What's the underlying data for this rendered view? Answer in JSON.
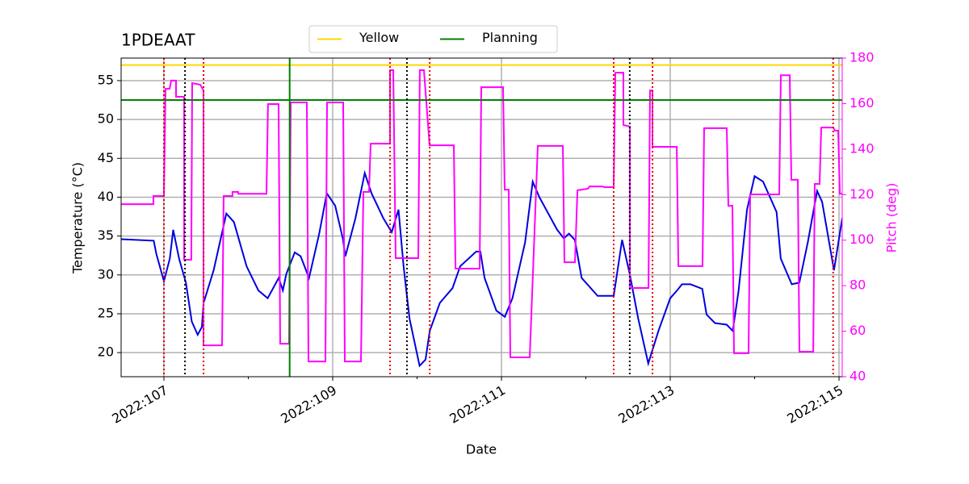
{
  "chart_data": {
    "type": "line",
    "title": "1PDEAAT",
    "xlabel": "Date",
    "ylabel": "Temperature (°C)",
    "y2label": "Pitch (deg)",
    "y2color": "magenta",
    "legend": "upper center",
    "grid": true,
    "xlim": [
      106.493,
      115.038
    ],
    "xticks": [
      {
        "value": 107,
        "label": "2022:107"
      },
      {
        "value": 109,
        "label": "2022:109"
      },
      {
        "value": 111,
        "label": "2022:111"
      },
      {
        "value": 113,
        "label": "2022:113"
      },
      {
        "value": 115,
        "label": "2022:115"
      }
    ],
    "xminor_ticks": [
      108,
      110,
      112,
      114
    ],
    "ylim": [
      16.9,
      57.9
    ],
    "yticks": [
      20,
      25,
      30,
      35,
      40,
      45,
      50,
      55
    ],
    "y2lim": [
      40,
      180
    ],
    "y2ticks": [
      40,
      60,
      80,
      100,
      120,
      140,
      160,
      180
    ],
    "hlines": [
      {
        "name": "Yellow",
        "color": "gold",
        "value": 57
      },
      {
        "name": "Planning",
        "color": "green",
        "value": 52.5
      }
    ],
    "vlines": [
      {
        "color": "#e00000",
        "style": "dotted",
        "x": [
          107.0,
          107.47,
          109.68,
          110.15,
          112.33,
          112.79,
          114.93
        ]
      },
      {
        "color": "black",
        "style": "dotted",
        "x": [
          107.25,
          109.88,
          112.52
        ]
      },
      {
        "color": "green",
        "style": "solid",
        "x": [
          108.49
        ]
      }
    ],
    "series": [
      {
        "color": "#0000e0",
        "x": [
          106.49,
          106.88,
          106.91,
          107.0,
          107.07,
          107.11,
          107.18,
          107.26,
          107.33,
          107.4,
          107.45,
          107.47,
          107.59,
          107.74,
          107.83,
          107.98,
          108.12,
          108.23,
          108.36,
          108.41,
          108.45,
          108.55,
          108.62,
          108.72,
          108.84,
          108.93,
          109.03,
          109.12,
          109.15,
          109.27,
          109.38,
          109.46,
          109.6,
          109.7,
          109.78,
          109.84,
          109.91,
          110.03,
          110.1,
          110.15,
          110.27,
          110.42,
          110.51,
          110.7,
          110.75,
          110.8,
          110.94,
          111.04,
          111.13,
          111.28,
          111.37,
          111.45,
          111.66,
          111.74,
          111.8,
          111.87,
          111.95,
          112.14,
          112.33,
          112.43,
          112.52,
          112.62,
          112.74,
          112.86,
          113.0,
          113.08,
          113.14,
          113.24,
          113.38,
          113.43,
          113.53,
          113.67,
          113.74,
          113.81,
          113.91,
          114.0,
          114.1,
          114.26,
          114.31,
          114.44,
          114.53,
          114.63,
          114.74,
          114.8,
          114.94,
          115.038
        ],
        "values": [
          34.6,
          34.4,
          32.7,
          29.2,
          32.1,
          35.8,
          32.1,
          29.0,
          24.0,
          22.3,
          23.3,
          26.4,
          30.6,
          37.9,
          36.8,
          31.1,
          28.0,
          27.0,
          29.6,
          28.0,
          30.1,
          32.9,
          32.4,
          29.6,
          35.3,
          40.5,
          38.9,
          34.7,
          32.4,
          37.3,
          43.1,
          40.5,
          37.3,
          35.5,
          38.4,
          31.1,
          24.4,
          18.3,
          19.1,
          22.8,
          26.4,
          28.3,
          31.1,
          33.0,
          33.0,
          29.6,
          25.4,
          24.6,
          27.0,
          34.2,
          42.0,
          40.0,
          35.8,
          34.7,
          35.3,
          34.5,
          29.6,
          27.3,
          27.3,
          34.5,
          30.1,
          24.4,
          18.6,
          22.8,
          27.0,
          28.0,
          28.8,
          28.8,
          28.2,
          24.9,
          23.8,
          23.6,
          22.8,
          28.0,
          38.4,
          42.7,
          42.0,
          38.1,
          32.1,
          28.8,
          29.0,
          34.2,
          40.8,
          39.4,
          30.6,
          37.3
        ]
      },
      {
        "color": "magenta",
        "axis": "y2",
        "x": [
          106.493,
          106.876,
          106.876,
          106.971,
          107.0,
          107.019,
          107.067,
          107.086,
          107.144,
          107.144,
          107.239,
          107.239,
          107.325,
          107.335,
          107.431,
          107.469,
          107.469,
          107.689,
          107.708,
          107.813,
          107.813,
          107.88,
          107.88,
          108.215,
          108.234,
          108.359,
          108.378,
          108.483,
          108.502,
          108.694,
          108.713,
          108.914,
          108.933,
          109.124,
          109.144,
          109.335,
          109.364,
          109.431,
          109.45,
          109.679,
          109.679,
          109.718,
          109.746,
          110.014,
          110.033,
          110.081,
          110.148,
          110.435,
          110.455,
          110.742,
          110.761,
          111.019,
          111.038,
          111.086,
          111.105,
          111.335,
          111.431,
          111.727,
          111.746,
          111.871,
          111.9,
          112.024,
          112.043,
          112.196,
          112.215,
          112.33,
          112.349,
          112.445,
          112.445,
          112.522,
          112.522,
          112.742,
          112.761,
          112.789,
          112.789,
          113.077,
          113.096,
          113.383,
          113.402,
          113.67,
          113.689,
          113.737,
          113.756,
          113.928,
          113.947,
          114.292,
          114.311,
          114.416,
          114.435,
          114.512,
          114.531,
          114.694,
          114.713,
          114.77,
          114.789,
          114.933,
          114.952,
          114.99,
          115.01,
          115.038
        ],
        "values": [
          115.8,
          115.8,
          119.4,
          119.4,
          119.4,
          166.5,
          166.5,
          170.1,
          170.1,
          163.0,
          163.0,
          91.4,
          91.4,
          169.0,
          168.3,
          165.8,
          53.8,
          53.8,
          119.4,
          119.4,
          121.2,
          121.2,
          120.4,
          120.4,
          159.8,
          159.8,
          54.5,
          54.5,
          160.5,
          160.5,
          46.7,
          46.7,
          160.5,
          160.5,
          46.7,
          46.7,
          121.2,
          121.2,
          142.4,
          142.4,
          174.7,
          174.7,
          92.1,
          92.1,
          174.7,
          174.7,
          141.7,
          141.7,
          87.5,
          87.5,
          167.2,
          167.2,
          122.2,
          122.2,
          48.5,
          48.5,
          141.4,
          141.4,
          90.3,
          90.3,
          121.9,
          122.6,
          123.6,
          123.6,
          123.3,
          123.3,
          173.6,
          173.6,
          150.6,
          149.9,
          79.0,
          79.0,
          165.8,
          165.8,
          141.0,
          141.0,
          88.6,
          88.6,
          149.2,
          149.2,
          115.1,
          115.1,
          50.3,
          50.3,
          120.1,
          120.1,
          172.5,
          172.5,
          126.5,
          126.5,
          51.0,
          51.0,
          124.7,
          124.7,
          149.5,
          149.5,
          148.1,
          148.1,
          120.4,
          120.4
        ]
      }
    ]
  }
}
